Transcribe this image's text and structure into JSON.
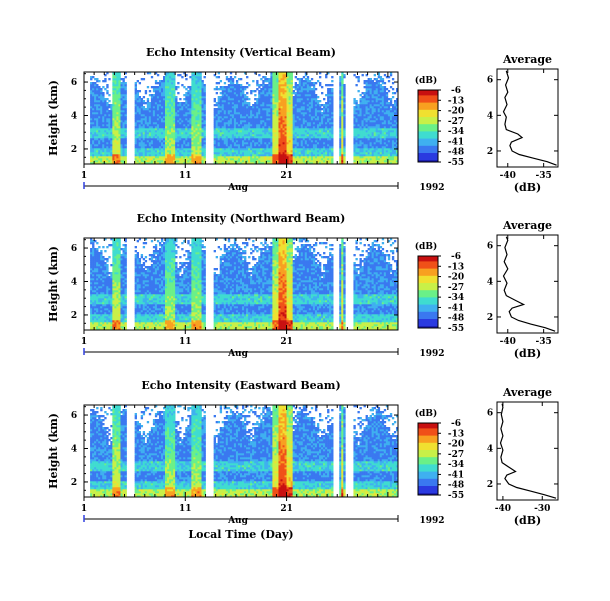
{
  "chart_data": [
    {
      "type": "heatmap",
      "title": "Echo Intensity (Vertical Beam)",
      "ylabel": "Height (km)",
      "yticks": [
        "2",
        "4",
        "6"
      ],
      "xticks": [
        "1",
        "11",
        "21"
      ],
      "xlim": [
        1,
        32
      ],
      "ylim": [
        1.1,
        6.6
      ],
      "colorbar": {
        "unit": "(dB)",
        "levels": [
          "-6",
          "-13",
          "-20",
          "-27",
          "-34",
          "-41",
          "-48",
          "-55"
        ]
      },
      "month_label": "Aug",
      "year_label": "1992",
      "xlabel": "",
      "average": {
        "title": "Average",
        "xlabel": "(dB)",
        "xticks": [
          -40,
          -35
        ],
        "xlim": [
          -41.5,
          -33
        ],
        "yticks": [
          "2",
          "4",
          "6"
        ],
        "ylim": [
          1.1,
          6.6
        ],
        "profile": [
          [
            1.2,
            -33.2
          ],
          [
            1.4,
            -34.5
          ],
          [
            1.6,
            -36.5
          ],
          [
            1.8,
            -38.4
          ],
          [
            2.0,
            -39.4
          ],
          [
            2.3,
            -39.7
          ],
          [
            2.5,
            -39.5
          ],
          [
            2.75,
            -38.0
          ],
          [
            2.95,
            -38.6
          ],
          [
            3.2,
            -40.2
          ],
          [
            3.5,
            -40.4
          ],
          [
            3.9,
            -40.2
          ],
          [
            4.2,
            -40.6
          ],
          [
            4.6,
            -40.1
          ],
          [
            5.0,
            -40.4
          ],
          [
            5.3,
            -40.0
          ],
          [
            5.7,
            -40.3
          ],
          [
            6.1,
            -39.9
          ],
          [
            6.5,
            -40.2
          ]
        ]
      }
    },
    {
      "type": "heatmap",
      "title": "Echo Intensity (Northward Beam)",
      "ylabel": "Height (km)",
      "yticks": [
        "2",
        "4",
        "6"
      ],
      "xticks": [
        "1",
        "11",
        "21"
      ],
      "xlim": [
        1,
        32
      ],
      "ylim": [
        1.1,
        6.6
      ],
      "colorbar": {
        "unit": "(dB)",
        "levels": [
          "-6",
          "-13",
          "-20",
          "-27",
          "-34",
          "-41",
          "-48",
          "-55"
        ]
      },
      "month_label": "Aug",
      "year_label": "1992",
      "xlabel": "",
      "average": {
        "title": "Average",
        "xlabel": "(dB)",
        "xticks": [
          -40,
          -35
        ],
        "xlim": [
          -41.5,
          -33
        ],
        "yticks": [
          "2",
          "4",
          "6"
        ],
        "ylim": [
          1.1,
          6.6
        ],
        "profile": [
          [
            1.2,
            -33.4
          ],
          [
            1.4,
            -34.8
          ],
          [
            1.6,
            -36.8
          ],
          [
            1.8,
            -38.5
          ],
          [
            2.0,
            -39.5
          ],
          [
            2.3,
            -39.8
          ],
          [
            2.5,
            -39.4
          ],
          [
            2.7,
            -37.8
          ],
          [
            2.9,
            -38.8
          ],
          [
            3.2,
            -40.2
          ],
          [
            3.5,
            -40.5
          ],
          [
            3.9,
            -40.1
          ],
          [
            4.3,
            -40.6
          ],
          [
            4.7,
            -40.0
          ],
          [
            5.1,
            -40.5
          ],
          [
            5.5,
            -40.1
          ],
          [
            5.9,
            -40.4
          ],
          [
            6.3,
            -40.0
          ],
          [
            6.5,
            -40.2
          ]
        ]
      }
    },
    {
      "type": "heatmap",
      "title": "Echo Intensity (Eastward Beam)",
      "ylabel": "Height (km)",
      "yticks": [
        "2",
        "4",
        "6"
      ],
      "xticks": [
        "1",
        "11",
        "21"
      ],
      "xlim": [
        1,
        32
      ],
      "ylim": [
        1.1,
        6.6
      ],
      "colorbar": {
        "unit": "(dB)",
        "levels": [
          "-6",
          "-13",
          "-20",
          "-27",
          "-34",
          "-41",
          "-48",
          "-55"
        ]
      },
      "month_label": "Aug",
      "year_label": "1992",
      "xlabel": "Local Time (Day)",
      "average": {
        "title": "Average",
        "xlabel": "(dB)",
        "xticks": [
          -40,
          -30
        ],
        "xlim": [
          -41.5,
          -26
        ],
        "yticks": [
          "2",
          "4",
          "6"
        ],
        "ylim": [
          1.1,
          6.6
        ],
        "profile": [
          [
            1.2,
            -26.5
          ],
          [
            1.4,
            -29.5
          ],
          [
            1.6,
            -33.0
          ],
          [
            1.8,
            -36.5
          ],
          [
            2.0,
            -38.5
          ],
          [
            2.3,
            -39.5
          ],
          [
            2.5,
            -39.0
          ],
          [
            2.7,
            -36.8
          ],
          [
            2.9,
            -38.2
          ],
          [
            3.2,
            -40.2
          ],
          [
            3.5,
            -40.5
          ],
          [
            3.9,
            -40.0
          ],
          [
            4.3,
            -40.6
          ],
          [
            4.7,
            -40.0
          ],
          [
            5.1,
            -40.5
          ],
          [
            5.5,
            -40.0
          ],
          [
            5.9,
            -40.4
          ],
          [
            6.3,
            -40.0
          ],
          [
            6.5,
            -40.2
          ]
        ]
      }
    }
  ]
}
